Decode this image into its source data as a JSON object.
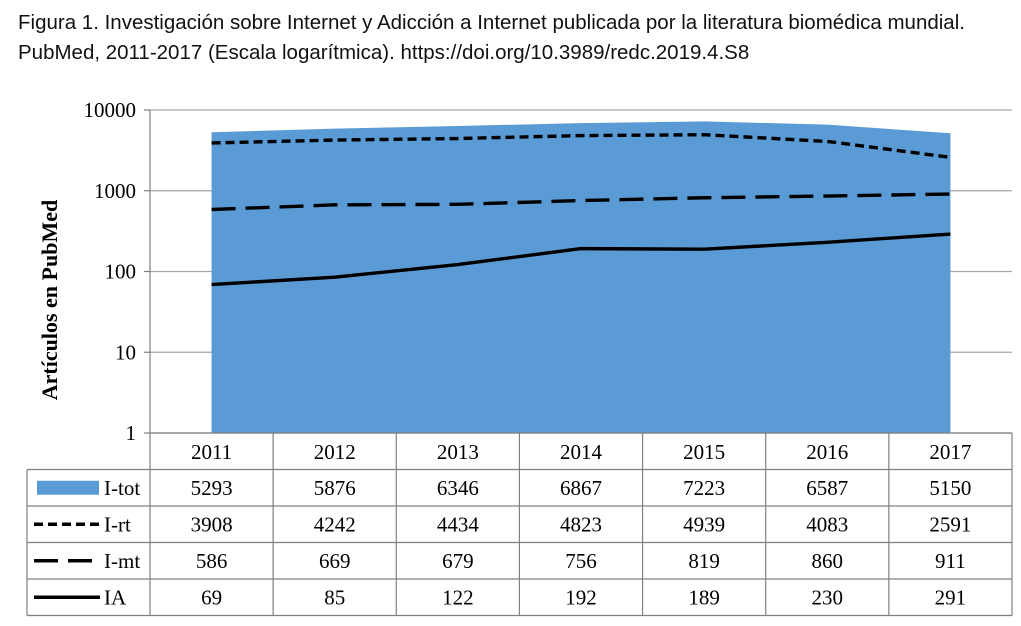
{
  "caption": "Figura 1. Investigación sobre Internet y Adicción a Internet publicada por la literatura biomédica mundial. PubMed, 2011-2017 (Escala logarítmica). https://doi.org/10.3989/redc.2019.4.S8",
  "chart_data": {
    "type": "area",
    "y_scale": "log",
    "ylabel": "Artículos en PubMed",
    "ylim": [
      1,
      10000
    ],
    "y_ticks": [
      "1",
      "10",
      "100",
      "1000",
      "10000"
    ],
    "categories": [
      "2011",
      "2012",
      "2013",
      "2014",
      "2015",
      "2016",
      "2017"
    ],
    "grid": true,
    "legend": "data-table-below",
    "series": [
      {
        "name": "I-tot",
        "style": "area",
        "color": "#5b9bd5",
        "values": [
          5293,
          5876,
          6346,
          6867,
          7223,
          6587,
          5150
        ]
      },
      {
        "name": "I-rt",
        "style": "dotted",
        "color": "#000000",
        "values": [
          3908,
          4242,
          4434,
          4823,
          4939,
          4083,
          2591
        ]
      },
      {
        "name": "I-mt",
        "style": "dashed",
        "color": "#000000",
        "values": [
          586,
          669,
          679,
          756,
          819,
          860,
          911
        ]
      },
      {
        "name": "IA",
        "style": "solid",
        "color": "#000000",
        "values": [
          69,
          85,
          122,
          192,
          189,
          230,
          291
        ]
      }
    ]
  }
}
